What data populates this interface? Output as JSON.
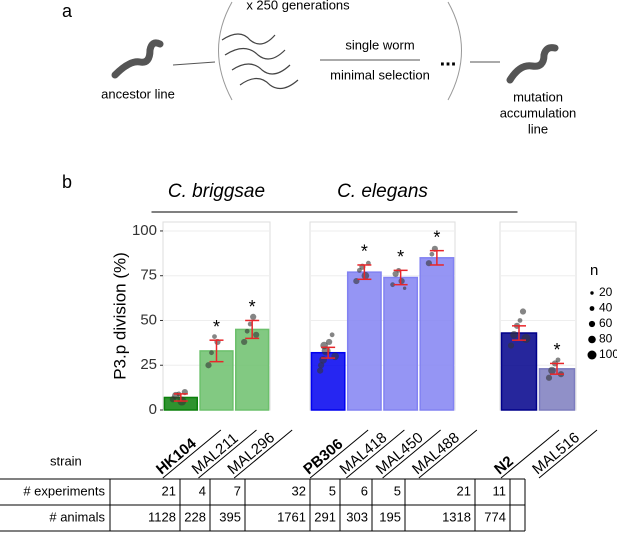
{
  "diagram": {
    "panel_label": "a",
    "generations": "x 250 generations",
    "ancestor": "ancestor line",
    "single_worm": "single worm",
    "minimal_selection": "minimal selection",
    "ellipsis": "...",
    "mutation_lines": [
      "mutation",
      "accumulation",
      "line"
    ]
  },
  "panel_b_label": "b",
  "strain_label": "strain",
  "chart_data": [
    {
      "type": "bar",
      "title": "C. briggsae",
      "y_label": "P3.p division (%)",
      "ylim": [
        0,
        105
      ],
      "yticks": [
        0,
        25,
        50,
        75,
        100
      ],
      "grid": true,
      "categories": [
        "HK104",
        "MAL211",
        "MAL296"
      ],
      "reference": [
        true,
        false,
        false
      ],
      "values": [
        7,
        33,
        45
      ],
      "errors": [
        2,
        6,
        5
      ],
      "colors": [
        "#0b800b",
        "#6cc06c",
        "#6cc06c"
      ],
      "annotations": [
        null,
        "*",
        "*"
      ],
      "points": [
        [
          [
            6,
            60
          ],
          [
            8,
            80
          ],
          [
            9,
            40
          ],
          [
            5,
            100
          ],
          [
            10,
            60
          ]
        ],
        [
          [
            25,
            60
          ],
          [
            32,
            40
          ],
          [
            41,
            40
          ],
          [
            38,
            60
          ]
        ],
        [
          [
            38,
            60
          ],
          [
            44,
            40
          ],
          [
            48,
            40
          ],
          [
            52,
            60
          ],
          [
            42,
            60
          ]
        ]
      ]
    },
    {
      "type": "bar",
      "title": "C. elegans",
      "ylim": [
        0,
        105
      ],
      "grid": true,
      "categories": [
        "PB306",
        "MAL418",
        "MAL450",
        "MAL488"
      ],
      "reference": [
        true,
        false,
        false,
        false
      ],
      "values": [
        32,
        77,
        74,
        85
      ],
      "errors": [
        3,
        4,
        4,
        4
      ],
      "colors": [
        "#0000f0",
        "#8282f2",
        "#8282f2",
        "#8282f2"
      ],
      "annotations": [
        null,
        "*",
        "*",
        "*"
      ],
      "points": [
        [
          [
            22,
            60
          ],
          [
            28,
            80
          ],
          [
            33,
            100
          ],
          [
            38,
            60
          ],
          [
            42,
            40
          ],
          [
            30,
            80
          ],
          [
            25,
            60
          ],
          [
            36,
            80
          ]
        ],
        [
          [
            72,
            60
          ],
          [
            78,
            40
          ],
          [
            80,
            60
          ],
          [
            75,
            80
          ],
          [
            82,
            40
          ]
        ],
        [
          [
            70,
            40
          ],
          [
            76,
            60
          ],
          [
            78,
            40
          ],
          [
            72,
            60
          ],
          [
            68,
            20
          ]
        ],
        [
          [
            82,
            60
          ],
          [
            87,
            40
          ],
          [
            90,
            60
          ]
        ]
      ]
    },
    {
      "type": "bar",
      "ylim": [
        0,
        105
      ],
      "grid": true,
      "categories": [
        "N2",
        "MAL516"
      ],
      "reference": [
        true,
        false
      ],
      "values": [
        43,
        23
      ],
      "errors": [
        4,
        3
      ],
      "colors": [
        "#00008b",
        "#7c7cbe"
      ],
      "annotations": [
        null,
        "*"
      ],
      "points": [
        [
          [
            36,
            60
          ],
          [
            42,
            80
          ],
          [
            47,
            60
          ],
          [
            50,
            40
          ],
          [
            55,
            60
          ],
          [
            40,
            100
          ]
        ],
        [
          [
            18,
            60
          ],
          [
            22,
            80
          ],
          [
            26,
            60
          ],
          [
            28,
            40
          ],
          [
            20,
            60
          ]
        ]
      ]
    }
  ],
  "size_legend": {
    "title": "n",
    "sizes": [
      20,
      40,
      60,
      80,
      100
    ]
  },
  "table": {
    "rows": [
      {
        "label": "# experiments",
        "cells": [
          21,
          4,
          7,
          32,
          5,
          6,
          5,
          21,
          11
        ]
      },
      {
        "label": "# animals",
        "cells": [
          1128,
          228,
          395,
          1761,
          291,
          303,
          195,
          1318,
          774
        ]
      }
    ]
  }
}
